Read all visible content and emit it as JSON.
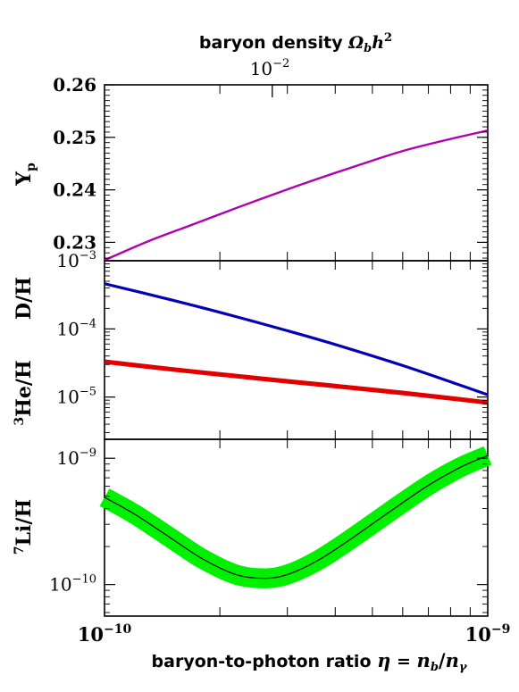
{
  "chart_data": {
    "type": "line",
    "top_axis": {
      "title_text": "baryon density ",
      "title_math": "Ω",
      "title_sub": "b",
      "title_h": "h",
      "title_sup": "2",
      "tick_base": "10",
      "tick_exp": "−2",
      "tick_at_eta": 2.74e-10
    },
    "x_axis": {
      "title_text": "baryon-to-photon ratio ",
      "title_eta": "η",
      "title_eq": " = ",
      "title_nb": "n",
      "title_nb_sub": "b",
      "title_slash": "/",
      "title_ng": "n",
      "title_ng_sub": "γ",
      "scale": "log",
      "range": [
        1e-10,
        1e-09
      ],
      "ticks": [
        {
          "base": "10",
          "exp": "−10",
          "value": 1e-10
        },
        {
          "base": "10",
          "exp": "−9",
          "value": 1e-09
        }
      ]
    },
    "panels": [
      {
        "id": "yp",
        "ylabel_main": "Y",
        "ylabel_sub": "p",
        "scale": "linear",
        "ylim": [
          0.2265,
          0.26
        ],
        "yticks": [
          "0.26",
          "0.25",
          "0.24",
          "0.23"
        ],
        "ytick_values": [
          0.26,
          0.25,
          0.24,
          0.23
        ],
        "series": [
          {
            "color": "#b000b0",
            "x": [
              1e-10,
              1.3e-10,
              1.7e-10,
              2.2e-10,
              2.8e-10,
              3.6e-10,
              4.6e-10,
              6e-10,
              7.8e-10,
              1e-09
            ],
            "y": [
              0.2266,
              0.2302,
              0.2334,
              0.2365,
              0.2393,
              0.2421,
              0.2447,
              0.2474,
              0.2495,
              0.2513
            ]
          }
        ]
      },
      {
        "id": "dh_he3",
        "ylabel_main": "D/H",
        "ylabel2_sup": "3",
        "ylabel2_main": "He/H",
        "scale": "log",
        "ylim_log10": [
          -5.62,
          -3.0
        ],
        "top_tick_base": "10",
        "top_tick_exp": "−3",
        "yticks": [
          {
            "base": "10",
            "exp": "−4",
            "value": 0.0001
          },
          {
            "base": "10",
            "exp": "−5",
            "value": 1e-05
          }
        ],
        "series": [
          {
            "color": "#0000b4",
            "x": [
              1e-10,
              1.5e-10,
              2e-10,
              3e-10,
              4e-10,
              6e-10,
              8e-10,
              1e-09
            ],
            "y": [
              0.00046,
              0.000265,
              0.000175,
              9.4e-05,
              5.9e-05,
              2.9e-05,
              1.67e-05,
              1.08e-05
            ]
          },
          {
            "color": "#e00000",
            "band_color": "#e00000",
            "x": [
              1e-10,
              1.5e-10,
              2e-10,
              3e-10,
              4e-10,
              6e-10,
              8e-10,
              1e-09
            ],
            "y": [
              3.3e-05,
              2.55e-05,
              2.15e-05,
              1.7e-05,
              1.45e-05,
              1.15e-05,
              9.6e-06,
              8.3e-06
            ],
            "band_rel": 0.08
          }
        ]
      },
      {
        "id": "li7",
        "ylabel_sup": "7",
        "ylabel_main": "Li/H",
        "scale": "log",
        "ylim_log10": [
          -10.25,
          -8.85
        ],
        "yticks": [
          {
            "base": "10",
            "exp": "−9",
            "value": 1e-09
          },
          {
            "base": "10",
            "exp": "−10",
            "value": 1e-10
          }
        ],
        "series": [
          {
            "color": "#000000",
            "band_color": "#00f000",
            "x": [
              1e-10,
              1.2e-10,
              1.5e-10,
              1.8e-10,
              2.2e-10,
              2.6e-10,
              3e-10,
              3.6e-10,
              4.4e-10,
              5.5e-10,
              7e-10,
              8.5e-10,
              1e-09
            ],
            "y": [
              4.9e-10,
              3.6e-10,
              2.3e-10,
              1.6e-10,
              1.2e-10,
              1.12e-10,
              1.2e-10,
              1.55e-10,
              2.3e-10,
              3.7e-10,
              6.1e-10,
              8.5e-10,
              1.05e-09
            ],
            "band_rel": 0.2
          }
        ]
      }
    ]
  }
}
